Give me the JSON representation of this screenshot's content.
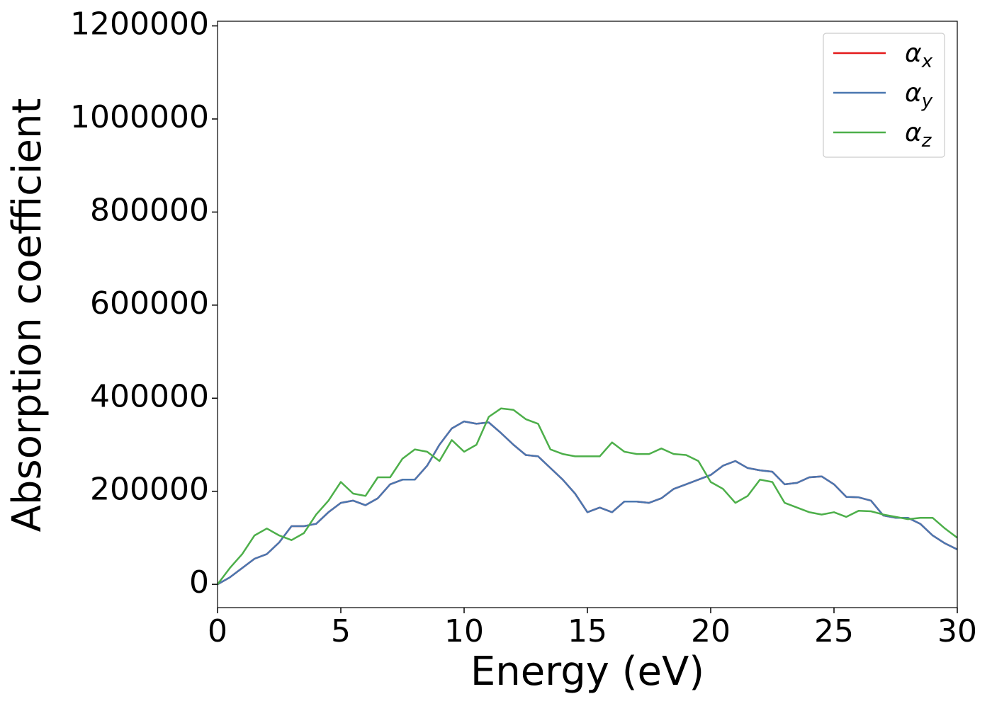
{
  "chart_data": {
    "type": "line",
    "x_label": "Energy (eV)",
    "y_label": "Absorption coefficient",
    "x": [
      0,
      0.5,
      1,
      1.5,
      2,
      2.5,
      3,
      3.5,
      4,
      4.5,
      5,
      5.5,
      6,
      6.5,
      7,
      7.5,
      8,
      8.5,
      9,
      9.5,
      10,
      10.5,
      11,
      11.5,
      12,
      12.5,
      13,
      13.5,
      14,
      14.5,
      15,
      15.5,
      16,
      16.5,
      17,
      17.5,
      18,
      18.5,
      19,
      19.5,
      20,
      20.5,
      21,
      21.5,
      22,
      22.5,
      23,
      23.5,
      24,
      24.5,
      25,
      25.5,
      26,
      26.5,
      27,
      27.5,
      28,
      28.5,
      29,
      29.5,
      30
    ],
    "series": [
      {
        "name": "αx",
        "color": "#e41a1c",
        "values": [
          0,
          15000,
          35000,
          55000,
          65000,
          90000,
          125000,
          125000,
          130000,
          155000,
          175000,
          180000,
          170000,
          185000,
          215000,
          225000,
          225000,
          255000,
          300000,
          335000,
          350000,
          345000,
          348000,
          325000,
          300000,
          278000,
          275000,
          250000,
          225000,
          195000,
          155000,
          165000,
          155000,
          178000,
          178000,
          175000,
          185000,
          205000,
          215000,
          225000,
          235000,
          255000,
          265000,
          250000,
          245000,
          242000,
          215000,
          218000,
          230000,
          232000,
          215000,
          188000,
          187000,
          180000,
          148000,
          143000,
          143000,
          130000,
          105000,
          88000,
          75000
        ]
      },
      {
        "name": "αy",
        "color": "#4a77b0",
        "values": [
          0,
          15000,
          35000,
          55000,
          65000,
          90000,
          125000,
          125000,
          130000,
          155000,
          175000,
          180000,
          170000,
          185000,
          215000,
          225000,
          225000,
          255000,
          300000,
          335000,
          350000,
          345000,
          348000,
          325000,
          300000,
          278000,
          275000,
          250000,
          225000,
          195000,
          155000,
          165000,
          155000,
          178000,
          178000,
          175000,
          185000,
          205000,
          215000,
          225000,
          235000,
          255000,
          265000,
          250000,
          245000,
          242000,
          215000,
          218000,
          230000,
          232000,
          215000,
          188000,
          187000,
          180000,
          148000,
          143000,
          143000,
          130000,
          105000,
          88000,
          75000
        ]
      },
      {
        "name": "αz",
        "color": "#4daf4a",
        "values": [
          0,
          35000,
          65000,
          105000,
          120000,
          105000,
          95000,
          110000,
          150000,
          180000,
          220000,
          195000,
          190000,
          230000,
          230000,
          270000,
          290000,
          285000,
          265000,
          310000,
          285000,
          300000,
          360000,
          378000,
          375000,
          355000,
          345000,
          290000,
          280000,
          275000,
          275000,
          275000,
          305000,
          285000,
          280000,
          280000,
          292000,
          280000,
          278000,
          265000,
          220000,
          205000,
          175000,
          190000,
          225000,
          220000,
          175000,
          165000,
          155000,
          150000,
          155000,
          145000,
          158000,
          157000,
          150000,
          145000,
          140000,
          143000,
          143000,
          120000,
          100000
        ]
      }
    ],
    "xlim": [
      0,
      30
    ],
    "xticks": [
      0,
      5,
      10,
      15,
      20,
      25,
      30
    ],
    "ylim": [
      -50000,
      1210000
    ],
    "yticks": [
      0,
      200000,
      400000,
      600000,
      800000,
      1000000,
      1200000
    ],
    "legend": "upper right",
    "grid": false
  }
}
